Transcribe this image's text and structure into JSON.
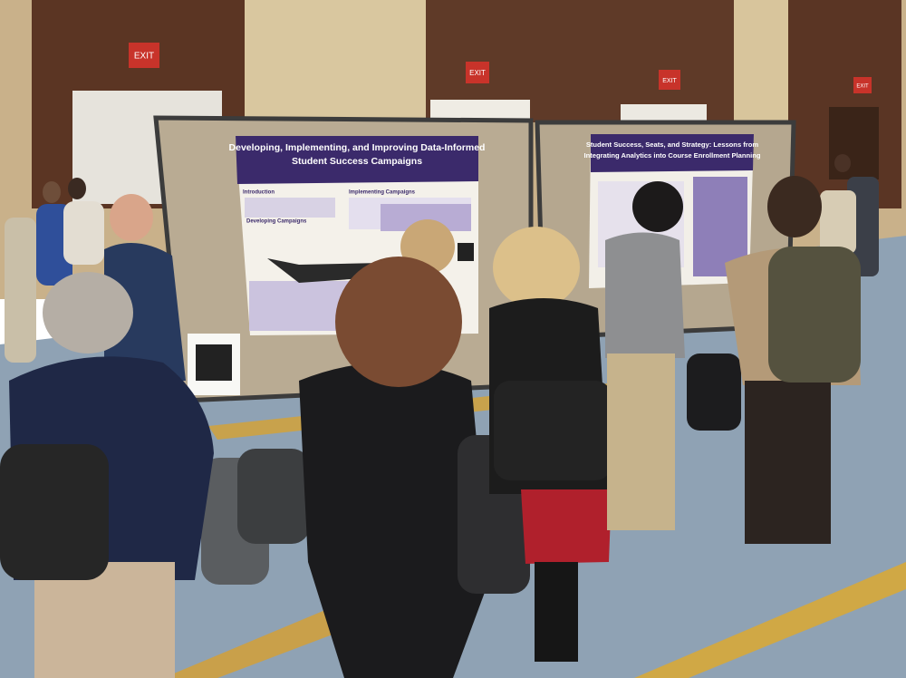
{
  "signs": [
    "EXIT",
    "EXIT",
    "EXIT",
    "EXIT"
  ],
  "posters": [
    {
      "title": [
        "Developing, Implementing, and Improving Data-Informed",
        "Student Success Campaigns"
      ],
      "sections": [
        "Introduction",
        "Implementing Campaigns",
        "Developing Campaigns"
      ]
    },
    {
      "title": [
        "Student Success, Seats, and Strategy: Lessons from",
        "Integrating Analytics into Course Enrollment Planning"
      ]
    }
  ]
}
